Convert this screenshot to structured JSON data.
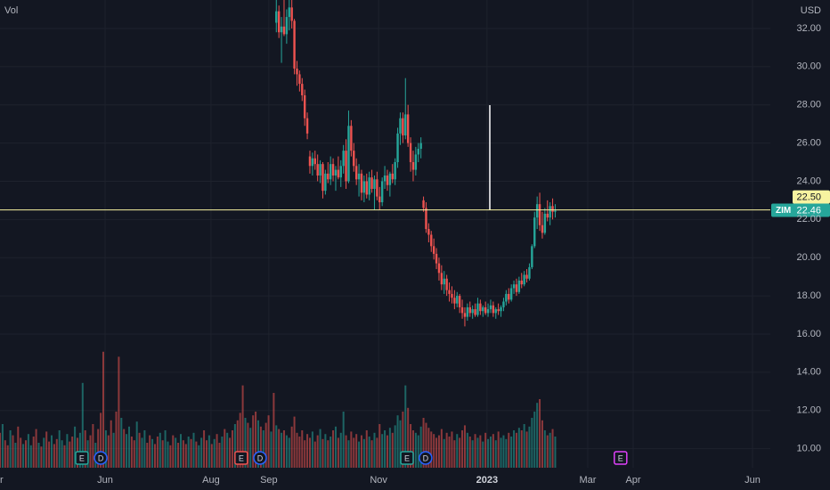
{
  "chart_data": {
    "type": "candlestick",
    "legend_label": "Vol",
    "currency": "USD",
    "colors": {
      "up": "#26a69a",
      "down": "#ef5350"
    },
    "ylim": [
      9.0,
      33.49
    ],
    "yticks": [
      {
        "value": 10,
        "label": "10.00"
      },
      {
        "value": 12,
        "label": "12.00"
      },
      {
        "value": 14,
        "label": "14.00"
      },
      {
        "value": 16,
        "label": "16.00"
      },
      {
        "value": 18,
        "label": "18.00"
      },
      {
        "value": 20,
        "label": "20.00"
      },
      {
        "value": 22,
        "label": "22.00"
      },
      {
        "value": 24,
        "label": "24.00"
      },
      {
        "value": 26,
        "label": "26.00"
      },
      {
        "value": 28,
        "label": "28.00"
      },
      {
        "value": 30,
        "label": "30.00"
      },
      {
        "value": 32,
        "label": "32.00"
      }
    ],
    "xlim": [
      0,
      298.3
    ],
    "xticks": [
      {
        "value": -1.7,
        "label": "Apr"
      },
      {
        "value": 40.7,
        "label": "Jun"
      },
      {
        "value": 81.7,
        "label": "Aug"
      },
      {
        "value": 104.1,
        "label": "Sep"
      },
      {
        "value": 146.6,
        "label": "Nov"
      },
      {
        "value": 188.6,
        "label": "2023"
      },
      {
        "value": 227.6,
        "label": "Mar"
      },
      {
        "value": 245.2,
        "label": "Apr"
      },
      {
        "value": 291.4,
        "label": "Jun"
      }
    ],
    "candles": [
      null,
      null,
      null,
      null,
      null,
      null,
      null,
      null,
      null,
      null,
      null,
      null,
      null,
      null,
      null,
      null,
      null,
      null,
      null,
      null,
      null,
      null,
      null,
      null,
      null,
      null,
      null,
      null,
      null,
      null,
      null,
      null,
      null,
      null,
      null,
      null,
      null,
      null,
      null,
      null,
      null,
      null,
      null,
      null,
      null,
      null,
      null,
      null,
      null,
      null,
      null,
      null,
      null,
      null,
      null,
      null,
      null,
      null,
      null,
      null,
      null,
      null,
      null,
      null,
      null,
      null,
      null,
      null,
      null,
      null,
      null,
      null,
      null,
      null,
      null,
      null,
      null,
      null,
      null,
      null,
      null,
      null,
      null,
      null,
      null,
      null,
      null,
      null,
      null,
      null,
      null,
      null,
      null,
      null,
      null,
      null,
      null,
      null,
      null,
      null,
      null,
      null,
      null,
      null,
      null,
      null,
      null,
      [
        32.3,
        33.6,
        31.8,
        32.9
      ],
      [
        32.9,
        33.2,
        31.5,
        31.8
      ],
      [
        31.8,
        32.6,
        30.2,
        32.1
      ],
      [
        32.1,
        33.5,
        31.6,
        31.7
      ],
      [
        31.7,
        33.0,
        31.2,
        32.6
      ],
      [
        32.6,
        33.6,
        31.9,
        33.1
      ],
      [
        33.1,
        33.6,
        32.0,
        32.4
      ],
      [
        32.4,
        32.5,
        29.6,
        29.9
      ],
      [
        29.9,
        30.3,
        29.0,
        29.6
      ],
      [
        29.6,
        29.8,
        28.7,
        29.1
      ],
      [
        29.1,
        29.4,
        28.2,
        28.5
      ],
      [
        28.5,
        28.8,
        26.9,
        27.3
      ],
      [
        27.3,
        27.6,
        26.2,
        26.5
      ],
      [
        25.3,
        25.6,
        24.4,
        24.8
      ],
      [
        24.8,
        25.5,
        24.3,
        25.2
      ],
      [
        25.2,
        25.6,
        24.6,
        24.9
      ],
      [
        24.9,
        25.4,
        24.0,
        24.3
      ],
      [
        24.3,
        25.1,
        23.9,
        24.9
      ],
      [
        24.9,
        25.0,
        23.1,
        23.5
      ],
      [
        23.5,
        24.6,
        23.3,
        24.4
      ],
      [
        24.4,
        25.0,
        23.9,
        24.1
      ],
      [
        24.1,
        25.3,
        23.8,
        24.9
      ],
      [
        24.9,
        25.2,
        24.0,
        24.3
      ],
      [
        24.3,
        24.8,
        23.5,
        24.6
      ],
      [
        24.6,
        25.3,
        24.1,
        24.2
      ],
      [
        24.2,
        25.1,
        23.7,
        24.8
      ],
      [
        24.8,
        25.9,
        24.4,
        25.6
      ],
      [
        25.6,
        26.2,
        23.6,
        24.0
      ],
      [
        24.0,
        27.7,
        23.9,
        26.9
      ],
      [
        26.9,
        27.2,
        25.3,
        25.6
      ],
      [
        25.6,
        26.0,
        24.5,
        24.8
      ],
      [
        24.8,
        25.2,
        23.8,
        24.1
      ],
      [
        24.1,
        24.9,
        23.2,
        24.4
      ],
      [
        24.4,
        24.6,
        23.0,
        23.4
      ],
      [
        23.4,
        24.3,
        22.9,
        24.0
      ],
      [
        24.0,
        24.4,
        23.1,
        23.3
      ],
      [
        23.3,
        24.5,
        23.0,
        24.2
      ],
      [
        24.2,
        24.6,
        23.4,
        23.6
      ],
      [
        23.6,
        24.3,
        22.5,
        24.1
      ],
      [
        24.1,
        24.5,
        23.0,
        23.2
      ],
      [
        23.2,
        23.7,
        22.5,
        22.9
      ],
      [
        22.9,
        24.2,
        22.7,
        24.0
      ],
      [
        24.0,
        24.8,
        23.6,
        24.3
      ],
      [
        24.3,
        24.6,
        23.5,
        23.8
      ],
      [
        23.8,
        24.5,
        23.2,
        24.4
      ],
      [
        24.4,
        24.9,
        23.9,
        24.1
      ],
      [
        24.1,
        25.2,
        23.8,
        25.0
      ],
      [
        25.0,
        26.8,
        24.7,
        26.5
      ],
      [
        26.5,
        27.6,
        25.9,
        27.3
      ],
      [
        27.3,
        27.6,
        26.0,
        26.4
      ],
      [
        26.4,
        29.4,
        26.2,
        27.5
      ],
      [
        27.5,
        28.0,
        25.8,
        26.0
      ],
      [
        26.0,
        26.3,
        24.5,
        25.0
      ],
      [
        25.0,
        25.6,
        24.0,
        24.6
      ],
      [
        24.6,
        25.8,
        24.3,
        25.4
      ],
      [
        25.4,
        26.0,
        25.0,
        25.7
      ],
      [
        25.7,
        26.3,
        25.2,
        26.0
      ],
      [
        23.0,
        23.2,
        22.4,
        22.6
      ],
      [
        22.6,
        22.9,
        21.3,
        21.5
      ],
      [
        21.5,
        21.8,
        20.8,
        21.2
      ],
      [
        21.2,
        21.4,
        20.3,
        20.6
      ],
      [
        20.6,
        21.0,
        19.9,
        20.2
      ],
      [
        20.2,
        20.5,
        19.4,
        19.7
      ],
      [
        19.7,
        20.0,
        18.8,
        19.2
      ],
      [
        19.2,
        19.6,
        18.3,
        18.6
      ],
      [
        18.6,
        19.3,
        18.1,
        18.9
      ],
      [
        18.9,
        19.1,
        18.0,
        18.3
      ],
      [
        18.3,
        18.7,
        17.7,
        18.1
      ],
      [
        18.1,
        18.5,
        17.6,
        17.9
      ],
      [
        17.9,
        18.3,
        17.3,
        17.6
      ],
      [
        17.6,
        18.2,
        17.4,
        18.0
      ],
      [
        18.0,
        18.1,
        17.1,
        17.4
      ],
      [
        17.4,
        17.8,
        16.8,
        17.1
      ],
      [
        17.1,
        17.4,
        16.4,
        16.9
      ],
      [
        16.9,
        17.6,
        16.7,
        17.4
      ],
      [
        17.4,
        17.7,
        16.9,
        17.1
      ],
      [
        17.1,
        17.5,
        16.8,
        17.3
      ],
      [
        17.3,
        17.6,
        16.9,
        17.0
      ],
      [
        17.0,
        17.9,
        16.9,
        17.6
      ],
      [
        17.6,
        17.8,
        17.0,
        17.2
      ],
      [
        17.2,
        17.5,
        16.9,
        17.4
      ],
      [
        17.4,
        17.7,
        17.0,
        17.1
      ],
      [
        17.1,
        17.6,
        16.9,
        17.3
      ],
      [
        17.3,
        17.8,
        17.1,
        17.5
      ],
      [
        17.5,
        17.7,
        16.9,
        17.1
      ],
      [
        17.1,
        17.4,
        16.8,
        17.3
      ],
      [
        17.3,
        17.6,
        17.0,
        17.2
      ],
      [
        17.2,
        17.5,
        16.9,
        17.4
      ],
      [
        17.4,
        17.9,
        17.2,
        17.7
      ],
      [
        17.7,
        18.3,
        17.5,
        18.1
      ],
      [
        18.1,
        18.4,
        17.6,
        17.8
      ],
      [
        17.8,
        18.6,
        17.7,
        18.4
      ],
      [
        18.4,
        18.8,
        18.1,
        18.6
      ],
      [
        18.6,
        18.9,
        18.0,
        18.2
      ],
      [
        18.2,
        19.0,
        18.1,
        18.8
      ],
      [
        18.8,
        19.2,
        18.4,
        18.6
      ],
      [
        18.6,
        19.3,
        18.5,
        19.1
      ],
      [
        19.1,
        19.4,
        18.7,
        18.9
      ],
      [
        18.9,
        19.7,
        18.8,
        19.5
      ],
      [
        19.5,
        20.7,
        19.4,
        20.6
      ],
      [
        20.6,
        22.4,
        20.5,
        22.1
      ],
      [
        22.1,
        23.2,
        21.5,
        22.8
      ],
      [
        22.8,
        23.4,
        21.4,
        21.7
      ],
      [
        21.7,
        22.4,
        21.0,
        21.3
      ],
      [
        21.3,
        22.6,
        21.2,
        22.3
      ],
      [
        22.3,
        23.0,
        21.9,
        22.1
      ],
      [
        22.1,
        22.9,
        21.7,
        22.7
      ],
      [
        22.7,
        23.1,
        22.0,
        22.4
      ],
      [
        22.4,
        22.8,
        22.1,
        22.46
      ]
    ],
    "volume": [
      28,
      35,
      22,
      18,
      30,
      26,
      20,
      33,
      24,
      19,
      22,
      27,
      18,
      25,
      31,
      20,
      17,
      24,
      29,
      21,
      26,
      19,
      23,
      30,
      22,
      18,
      27,
      21,
      25,
      33,
      24,
      28,
      68,
      30,
      22,
      26,
      35,
      20,
      31,
      44,
      93,
      30,
      26,
      38,
      28,
      45,
      89,
      40,
      31,
      27,
      33,
      25,
      22,
      37,
      28,
      24,
      30,
      20,
      26,
      23,
      19,
      25,
      28,
      22,
      30,
      21,
      18,
      26,
      24,
      20,
      27,
      22,
      19,
      25,
      23,
      28,
      21,
      18,
      24,
      30,
      22,
      26,
      19,
      23,
      27,
      20,
      25,
      31,
      28,
      24,
      30,
      35,
      38,
      44,
      66,
      40,
      36,
      32,
      42,
      45,
      38,
      33,
      30,
      36,
      42,
      29,
      60,
      34,
      31,
      28,
      30,
      26,
      24,
      33,
      41,
      28,
      25,
      30,
      22,
      27,
      24,
      29,
      21,
      26,
      31,
      23,
      27,
      22,
      25,
      30,
      33,
      24,
      28,
      45,
      26,
      22,
      29,
      24,
      27,
      21,
      26,
      23,
      30,
      25,
      22,
      28,
      24,
      35,
      27,
      30,
      26,
      32,
      28,
      34,
      42,
      38,
      45,
      66,
      48,
      35,
      30,
      28,
      26,
      33,
      40,
      36,
      32,
      29,
      27,
      24,
      26,
      31,
      23,
      28,
      25,
      29,
      22,
      27,
      24,
      30,
      34,
      28,
      25,
      22,
      27,
      24,
      26,
      21,
      28,
      23,
      25,
      27,
      22,
      29,
      24,
      26,
      23,
      28,
      25,
      30,
      28,
      32,
      30,
      35,
      29,
      33,
      40,
      45,
      52,
      55,
      38,
      30,
      26,
      28,
      31,
      25
    ],
    "volume_up": [
      0,
      1,
      0,
      0,
      1,
      0,
      1,
      0,
      0,
      1,
      0,
      1,
      1,
      0,
      0,
      1,
      0,
      1,
      0,
      0,
      1,
      0,
      0,
      1,
      1,
      0,
      1,
      0,
      0,
      1,
      0,
      1,
      1,
      0,
      1,
      0,
      0,
      1,
      0,
      0,
      0,
      1,
      0,
      0,
      1,
      0,
      0,
      1,
      0,
      1,
      1,
      0,
      0,
      1,
      0,
      1,
      1,
      0,
      0,
      1,
      0,
      0,
      1,
      0,
      1,
      1,
      0,
      0,
      1,
      0,
      1,
      0,
      0,
      1,
      0,
      1,
      0,
      1,
      1,
      0,
      0,
      1,
      0,
      1,
      0,
      0,
      1,
      0,
      1,
      0,
      0,
      1,
      0,
      0,
      0,
      1,
      0,
      1,
      0,
      0,
      1,
      0,
      1,
      0,
      0,
      1,
      0,
      1,
      0,
      1,
      0,
      1,
      1,
      0,
      0,
      0,
      0,
      0,
      0,
      0,
      0,
      1,
      0,
      0,
      1,
      0,
      1,
      0,
      1,
      0,
      1,
      0,
      1,
      1,
      0,
      1,
      0,
      0,
      0,
      1,
      0,
      1,
      0,
      1,
      0,
      1,
      0,
      0,
      1,
      1,
      0,
      1,
      0,
      1,
      1,
      1,
      0,
      1,
      0,
      0,
      0,
      1,
      1,
      1,
      0,
      0,
      0,
      0,
      0,
      0,
      0,
      0,
      1,
      0,
      0,
      0,
      0,
      1,
      0,
      0,
      0,
      1,
      0,
      1,
      0,
      1,
      0,
      1,
      0,
      1,
      1,
      0,
      1,
      0,
      1,
      1,
      1,
      0,
      1,
      1,
      0,
      1,
      0,
      1,
      0,
      1,
      1,
      1,
      1,
      0,
      0,
      1,
      0,
      1,
      0,
      1
    ],
    "alert_line": {
      "value": 22.5,
      "label": "22.50",
      "color": "#f7f3a0"
    },
    "price_line": {
      "symbol": "ZIM",
      "value": 22.46,
      "color": "#26a69a"
    },
    "events": [
      {
        "label": "E",
        "x": 31.7,
        "color": "#26a69a"
      },
      {
        "label": "D",
        "x": 39.0,
        "color": "#2962ff"
      },
      {
        "label": "E",
        "x": 93.4,
        "color": "#ef5350"
      },
      {
        "label": "D",
        "x": 100.7,
        "color": "#2962ff"
      },
      {
        "label": "E",
        "x": 157.6,
        "color": "#26a69a"
      },
      {
        "label": "D",
        "x": 164.8,
        "color": "#2962ff"
      },
      {
        "label": "E",
        "x": 240.3,
        "color": "#e040fb"
      }
    ]
  }
}
